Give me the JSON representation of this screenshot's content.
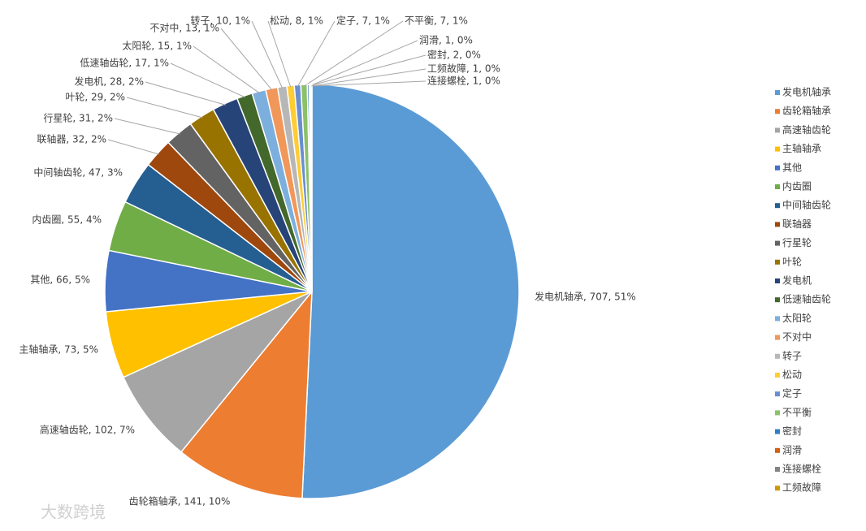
{
  "chart_data": {
    "type": "pie",
    "categories": [
      "发电机轴承",
      "齿轮箱轴承",
      "高速轴齿轮",
      "主轴轴承",
      "其他",
      "内齿圈",
      "中间轴齿轮",
      "联轴器",
      "行星轮",
      "叶轮",
      "发电机",
      "低速轴齿轮",
      "太阳轮",
      "不对中",
      "转子",
      "松动",
      "定子",
      "不平衡",
      "密封",
      "润滑",
      "连接螺栓",
      "工频故障"
    ],
    "values": [
      707,
      141,
      102,
      73,
      66,
      55,
      47,
      32,
      31,
      29,
      28,
      17,
      15,
      13,
      10,
      8,
      7,
      7,
      2,
      1,
      1,
      1
    ],
    "value_labels": [
      "发电机轴承, 707, 51%",
      "齿轮箱轴承, 141, 10%",
      "高速轴齿轮, 102, 7%",
      "主轴轴承, 73, 5%",
      "其他, 66, 5%",
      "内齿圈, 55, 4%",
      "中间轴齿轮, 47, 3%",
      "联轴器, 32, 2%",
      "行星轮, 31, 2%",
      "叶轮, 29, 2%",
      "发电机, 28, 2%",
      "低速轴齿轮, 17, 1%",
      "太阳轮, 15, 1%",
      "不对中, 13, 1%",
      "转子, 10, 1%",
      "松动, 8, 1%",
      "定子, 7, 1%",
      "不平衡, 7, 1%",
      "密封, 2, 0%",
      "润滑, 1, 0%",
      "连接螺栓, 1, 0%",
      "工频故障, 1, 0%"
    ],
    "colors": [
      "#5b9bd5",
      "#ed7d31",
      "#a5a5a5",
      "#ffc000",
      "#4472c4",
      "#70ad47",
      "#255e91",
      "#9e480e",
      "#636363",
      "#997300",
      "#264478",
      "#43682b",
      "#7cafdd",
      "#f1975a",
      "#b7b7b7",
      "#ffcd33",
      "#698ed0",
      "#8cc168",
      "#327dc2",
      "#d26012",
      "#848484",
      "#cc9a00"
    ],
    "legend": "right",
    "watermark": "大数跨境"
  }
}
